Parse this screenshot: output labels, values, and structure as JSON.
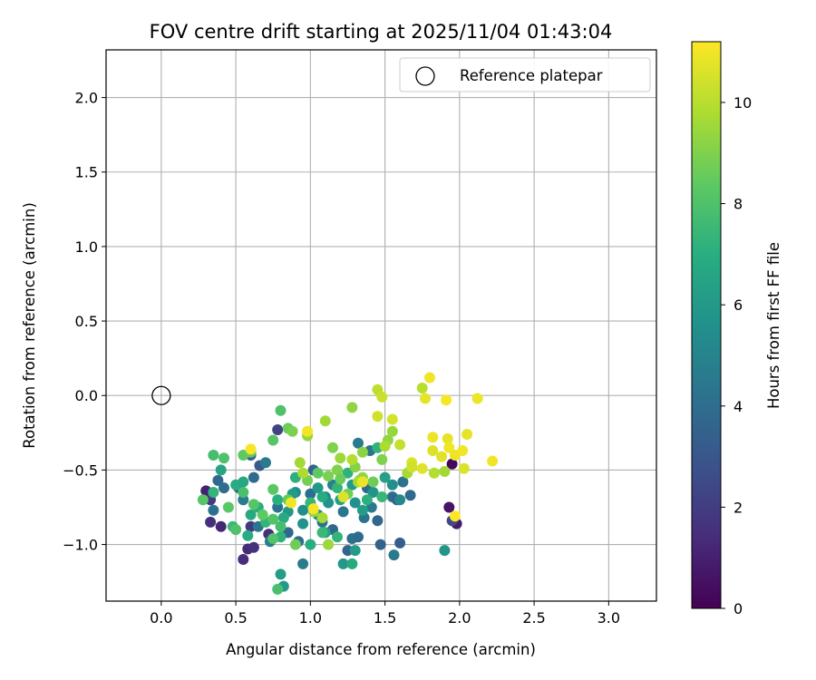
{
  "chart_data": {
    "type": "scatter",
    "title": "FOV centre drift starting at 2025/11/04 01:43:04",
    "xlabel": "Angular distance from reference (arcmin)",
    "ylabel": "Rotation from reference (arcmin)",
    "xlim": [
      -0.37,
      3.32
    ],
    "ylim": [
      -1.38,
      2.32
    ],
    "xticks": [
      "0.0",
      "0.5",
      "1.0",
      "1.5",
      "2.0",
      "2.5",
      "3.0"
    ],
    "yticks": [
      "−1.0",
      "−0.5",
      "0.0",
      "0.5",
      "1.0",
      "1.5",
      "2.0"
    ],
    "grid": true,
    "legend": {
      "entries": [
        "Reference platepar"
      ],
      "placement": "upper right"
    },
    "reference_point": {
      "x": 0.0,
      "y": 0.0,
      "marker": "open-circle"
    },
    "colorbar": {
      "label": "Hours from first FF file",
      "colormap": "viridis",
      "range": [
        0,
        11.2
      ],
      "ticks": [
        "0",
        "2",
        "4",
        "6",
        "8",
        "10"
      ]
    },
    "series": [
      {
        "points": [
          [
            0.3,
            -0.64,
            1.0
          ],
          [
            0.33,
            -0.85,
            1.5
          ],
          [
            0.4,
            -0.88,
            1.2
          ],
          [
            0.33,
            -0.7,
            1.9
          ],
          [
            0.58,
            -1.03,
            1.3
          ],
          [
            0.62,
            -1.02,
            1.6
          ],
          [
            0.55,
            -1.1,
            1.4
          ],
          [
            0.6,
            -0.88,
            1.8
          ],
          [
            0.72,
            -0.93,
            1.5
          ],
          [
            0.78,
            -0.23,
            2.2
          ],
          [
            1.93,
            -0.75,
            0.6
          ],
          [
            1.95,
            -0.46,
            0.2
          ],
          [
            1.98,
            -0.86,
            0.8
          ],
          [
            1.95,
            -0.84,
            2.5
          ],
          [
            0.38,
            -0.57,
            3.8
          ],
          [
            0.42,
            -0.62,
            4.0
          ],
          [
            0.35,
            -0.77,
            4.2
          ],
          [
            0.52,
            -0.62,
            3.6
          ],
          [
            0.55,
            -0.7,
            4.6
          ],
          [
            0.6,
            -0.4,
            3.5
          ],
          [
            0.66,
            -0.47,
            3.2
          ],
          [
            0.7,
            -0.45,
            4.5
          ],
          [
            0.62,
            -0.55,
            3.9
          ],
          [
            0.65,
            -0.88,
            4.4
          ],
          [
            0.73,
            -0.98,
            4.8
          ],
          [
            0.78,
            -0.75,
            4.2
          ],
          [
            0.85,
            -0.92,
            3.8
          ],
          [
            0.92,
            -0.98,
            4.0
          ],
          [
            0.95,
            -1.13,
            4.6
          ],
          [
            1.0,
            -0.66,
            4.0
          ],
          [
            1.02,
            -0.5,
            3.5
          ],
          [
            1.08,
            -0.85,
            4.2
          ],
          [
            1.15,
            -0.9,
            3.7
          ],
          [
            1.22,
            -0.78,
            4.4
          ],
          [
            1.25,
            -1.04,
            3.6
          ],
          [
            1.28,
            -0.96,
            4.1
          ],
          [
            1.32,
            -0.95,
            3.9
          ],
          [
            1.36,
            -0.82,
            4.3
          ],
          [
            1.38,
            -0.62,
            3.8
          ],
          [
            1.41,
            -0.75,
            4.5
          ],
          [
            1.45,
            -0.84,
            3.7
          ],
          [
            1.47,
            -1.0,
            3.5
          ],
          [
            1.55,
            -0.68,
            4.0
          ],
          [
            1.58,
            -0.7,
            3.6
          ],
          [
            1.6,
            -0.99,
            3.3
          ],
          [
            1.62,
            -0.58,
            4.2
          ],
          [
            1.67,
            -0.67,
            3.8
          ],
          [
            1.56,
            -1.07,
            4.5
          ],
          [
            1.32,
            -0.32,
            4.6
          ],
          [
            1.4,
            -0.37,
            4.3
          ],
          [
            1.15,
            -0.6,
            4.9
          ],
          [
            1.1,
            -0.68,
            5.1
          ],
          [
            1.05,
            -0.8,
            5.3
          ],
          [
            0.95,
            -0.77,
            5.5
          ],
          [
            0.9,
            -0.65,
            5.4
          ],
          [
            0.85,
            -0.78,
            5.9
          ],
          [
            0.88,
            -0.66,
            6.1
          ],
          [
            1.05,
            -0.62,
            6.0
          ],
          [
            1.12,
            -0.72,
            5.7
          ],
          [
            1.2,
            -0.7,
            6.3
          ],
          [
            1.28,
            -0.6,
            6.0
          ],
          [
            1.3,
            -0.72,
            5.6
          ],
          [
            1.35,
            -0.77,
            6.2
          ],
          [
            1.42,
            -0.65,
            5.8
          ],
          [
            1.5,
            -0.55,
            6.3
          ],
          [
            1.55,
            -0.6,
            5.5
          ],
          [
            1.3,
            -1.04,
            6.1
          ],
          [
            1.22,
            -1.13,
            5.9
          ],
          [
            1.1,
            -0.92,
            6.3
          ],
          [
            0.95,
            -0.86,
            5.7
          ],
          [
            0.8,
            -1.2,
            6.2
          ],
          [
            0.82,
            -1.28,
            6.0
          ],
          [
            1.9,
            -1.04,
            5.8
          ],
          [
            1.6,
            -0.7,
            5.2
          ],
          [
            0.4,
            -0.5,
            6.5
          ],
          [
            0.5,
            -0.6,
            6.9
          ],
          [
            0.55,
            -0.58,
            6.7
          ],
          [
            0.6,
            -0.8,
            6.8
          ],
          [
            0.65,
            -0.75,
            7.0
          ],
          [
            0.7,
            -0.85,
            7.3
          ],
          [
            0.78,
            -0.7,
            7.0
          ],
          [
            0.82,
            -0.82,
            6.8
          ],
          [
            0.9,
            -0.55,
            7.1
          ],
          [
            1.0,
            -0.72,
            7.4
          ],
          [
            1.08,
            -0.68,
            6.9
          ],
          [
            1.18,
            -0.62,
            7.3
          ],
          [
            1.25,
            -0.52,
            7.2
          ],
          [
            1.33,
            -0.57,
            7.5
          ],
          [
            1.38,
            -0.7,
            7.1
          ],
          [
            1.48,
            -0.68,
            7.4
          ],
          [
            1.45,
            -0.35,
            7.2
          ],
          [
            1.28,
            -1.13,
            6.8
          ],
          [
            1.18,
            -0.95,
            7.3
          ],
          [
            1.08,
            -0.92,
            7.5
          ],
          [
            1.0,
            -1.0,
            7.0
          ],
          [
            0.8,
            -0.95,
            7.2
          ],
          [
            0.58,
            -0.94,
            6.9
          ],
          [
            0.48,
            -0.88,
            7.5
          ],
          [
            0.35,
            -0.65,
            7.3
          ],
          [
            0.35,
            -0.4,
            7.8
          ],
          [
            0.42,
            -0.42,
            8.0
          ],
          [
            0.28,
            -0.7,
            8.2
          ],
          [
            0.45,
            -0.75,
            8.3
          ],
          [
            0.5,
            -0.9,
            8.0
          ],
          [
            0.55,
            -0.65,
            7.9
          ],
          [
            0.62,
            -0.73,
            8.2
          ],
          [
            0.68,
            -0.8,
            8.4
          ],
          [
            0.75,
            -0.83,
            8.1
          ],
          [
            0.8,
            -0.88,
            7.8
          ],
          [
            0.75,
            -0.63,
            8.3
          ],
          [
            0.85,
            -0.7,
            8.5
          ],
          [
            0.75,
            -0.96,
            8.1
          ],
          [
            0.78,
            -1.3,
            7.9
          ],
          [
            0.8,
            -0.1,
            8.0
          ],
          [
            0.85,
            -0.22,
            8.6
          ],
          [
            0.88,
            -0.24,
            8.9
          ],
          [
            0.75,
            -0.3,
            8.2
          ],
          [
            0.55,
            -0.4,
            8.4
          ],
          [
            0.6,
            -0.38,
            8.5
          ],
          [
            0.9,
            -1.0,
            8.7
          ],
          [
            0.98,
            -0.57,
            8.8
          ],
          [
            1.05,
            -0.52,
            8.4
          ],
          [
            1.12,
            -0.54,
            8.9
          ],
          [
            1.18,
            -0.5,
            9.0
          ],
          [
            1.2,
            -0.56,
            8.6
          ],
          [
            1.25,
            -0.66,
            8.8
          ],
          [
            1.3,
            -0.48,
            9.1
          ],
          [
            1.35,
            -0.55,
            9.3
          ],
          [
            1.42,
            -0.58,
            8.7
          ],
          [
            1.48,
            -0.43,
            9.0
          ],
          [
            1.52,
            -0.3,
            9.3
          ],
          [
            1.55,
            -0.24,
            9.4
          ],
          [
            1.35,
            -0.38,
            9.2
          ],
          [
            1.2,
            -0.42,
            9.5
          ],
          [
            1.15,
            -0.35,
            9.0
          ],
          [
            1.1,
            -0.17,
            9.6
          ],
          [
            0.98,
            -0.27,
            9.4
          ],
          [
            0.93,
            -0.45,
            9.6
          ],
          [
            1.28,
            -0.08,
            9.3
          ],
          [
            1.02,
            -0.78,
            9.4
          ],
          [
            1.08,
            -0.82,
            9.7
          ],
          [
            1.12,
            -1.0,
            9.5
          ],
          [
            0.95,
            -0.52,
            9.8
          ],
          [
            0.87,
            -0.72,
            9.6
          ],
          [
            1.28,
            -0.43,
            9.9
          ],
          [
            1.32,
            -0.58,
            9.7
          ],
          [
            1.5,
            -0.34,
            9.8
          ],
          [
            1.65,
            -0.52,
            9.7
          ],
          [
            1.83,
            -0.52,
            9.9
          ],
          [
            1.9,
            -0.51,
            9.6
          ],
          [
            1.75,
            0.05,
            10.0
          ],
          [
            1.45,
            0.04,
            10.1
          ],
          [
            1.48,
            -0.01,
            10.3
          ],
          [
            1.45,
            -0.14,
            10.4
          ],
          [
            1.55,
            -0.16,
            10.5
          ],
          [
            1.6,
            -0.33,
            10.2
          ],
          [
            1.68,
            -0.45,
            10.6
          ],
          [
            1.68,
            -0.48,
            10.4
          ],
          [
            1.75,
            -0.49,
            10.7
          ],
          [
            1.77,
            -0.02,
            10.8
          ],
          [
            1.82,
            -0.28,
            10.9
          ],
          [
            1.82,
            -0.37,
            10.6
          ],
          [
            1.88,
            -0.41,
            10.7
          ],
          [
            1.92,
            -0.29,
            10.8
          ],
          [
            1.93,
            -0.35,
            11.0
          ],
          [
            1.97,
            -0.4,
            10.9
          ],
          [
            2.02,
            -0.37,
            11.0
          ],
          [
            2.05,
            -0.26,
            10.8
          ],
          [
            2.03,
            -0.49,
            10.6
          ],
          [
            2.12,
            -0.02,
            10.9
          ],
          [
            2.22,
            -0.44,
            11.0
          ],
          [
            1.91,
            -0.03,
            11.1
          ],
          [
            1.8,
            0.12,
            11.0
          ],
          [
            1.97,
            -0.81,
            11.2
          ],
          [
            0.98,
            -0.24,
            11.0
          ],
          [
            0.6,
            -0.36,
            11.1
          ],
          [
            0.87,
            -0.72,
            11.0
          ],
          [
            1.02,
            -0.76,
            11.1
          ],
          [
            1.22,
            -0.68,
            10.6
          ],
          [
            1.35,
            -0.58,
            10.9
          ]
        ]
      }
    ]
  }
}
